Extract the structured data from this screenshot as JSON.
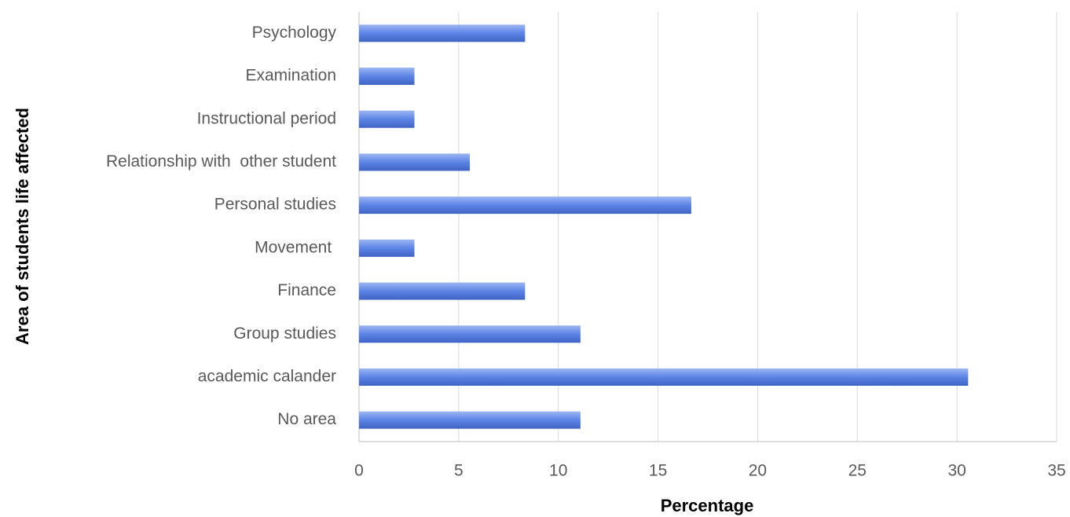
{
  "chart_data": {
    "type": "hbar",
    "xlabel": "Percentage",
    "ylabel": "Area of students life affected",
    "categories": [
      "Psychology",
      "Examination",
      "Instructional period",
      "Relationship with  other student",
      "Personal studies",
      "Movement ",
      "Finance",
      "Group studies",
      "academic calander",
      "No area"
    ],
    "values": [
      8.33,
      2.78,
      2.78,
      5.56,
      16.67,
      2.78,
      8.33,
      11.11,
      30.56,
      11.11
    ],
    "color": "#5b84e6",
    "xlim": [
      0,
      35
    ],
    "xticks": [
      0,
      5,
      10,
      15,
      20,
      25,
      30,
      35
    ],
    "grid": true
  }
}
